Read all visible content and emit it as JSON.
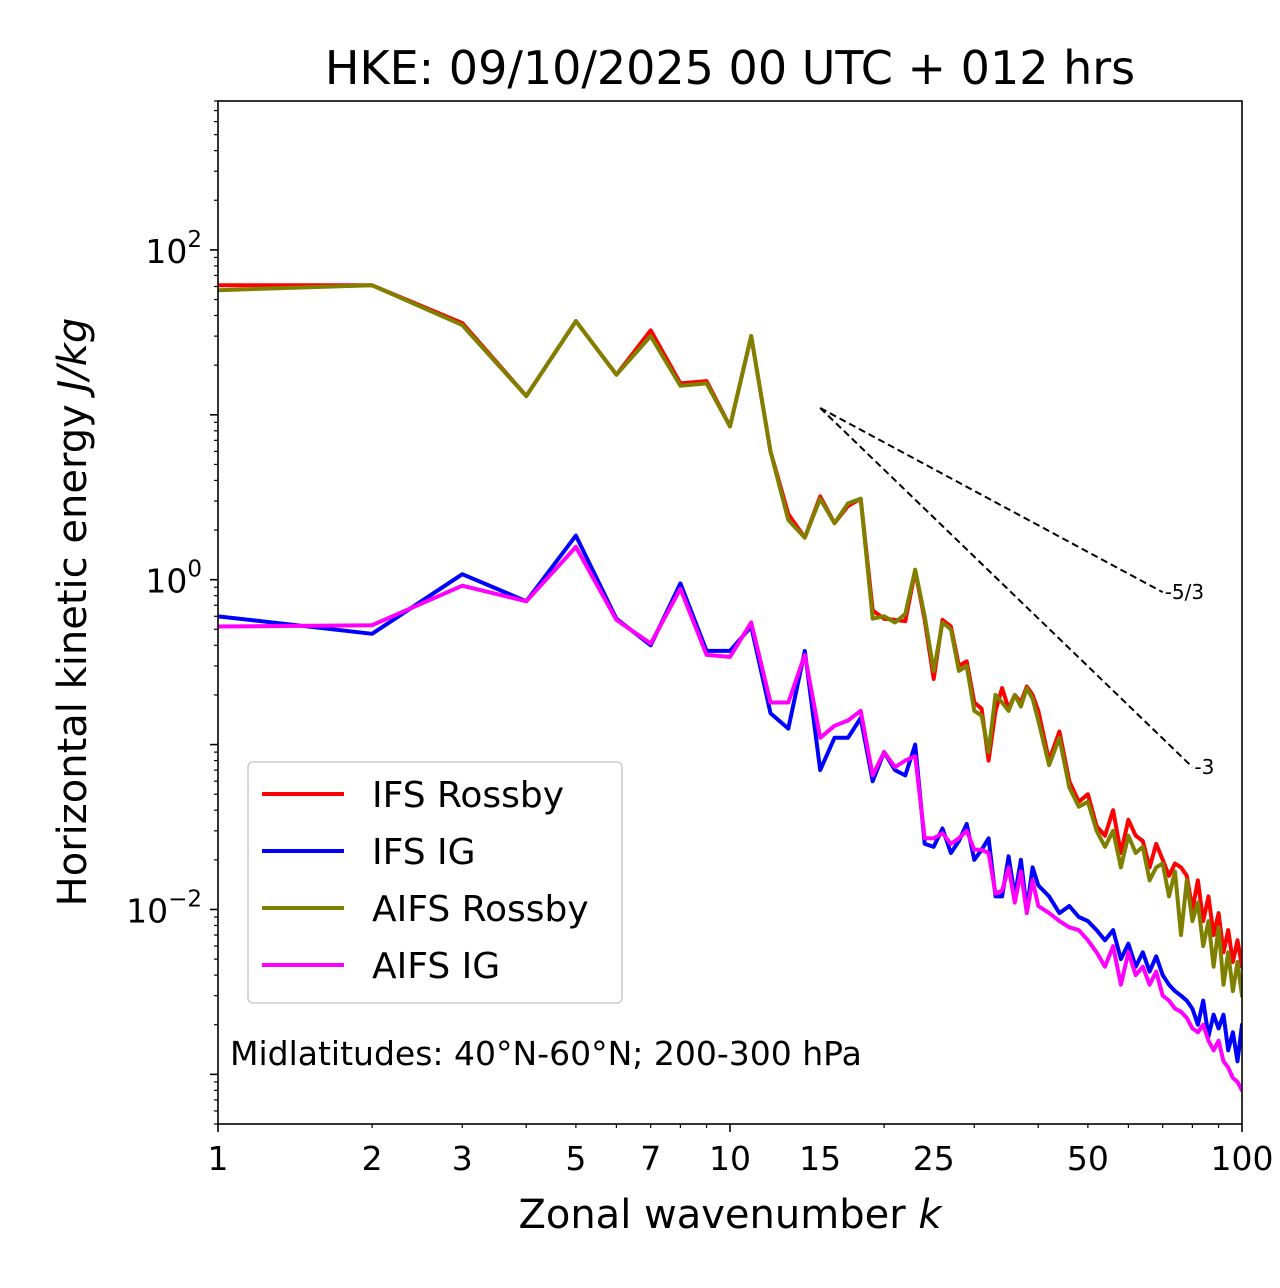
{
  "chart_data": {
    "type": "line",
    "title": "HKE: 09/10/2025 00 UTC + 012 hrs",
    "xlabel": "Zonal wavenumber",
    "xlabel_var": "k",
    "ylabel": "Horizontal kinetic energy",
    "ylabel_unit": "J/kg",
    "xscale": "log",
    "yscale": "log",
    "xlim": [
      1,
      100
    ],
    "ylim": [
      0.0005,
      800
    ],
    "x_ticks": [
      1,
      2,
      3,
      5,
      7,
      10,
      15,
      25,
      50,
      100
    ],
    "x_tick_labels": [
      "1",
      "2",
      "3",
      "5",
      "7",
      "10",
      "15",
      "25",
      "50",
      "100"
    ],
    "y_ticks": [
      {
        "value": 100,
        "base": "10",
        "exp": "2"
      },
      {
        "value": 1,
        "base": "10",
        "exp": "0"
      },
      {
        "value": 0.01,
        "base": "10",
        "exp": "−2"
      }
    ],
    "annotation": "Midlatitudes: 40°N-60°N; 200-300 hPa",
    "legend_position": "lower-left",
    "reference_slopes": [
      {
        "label": "-5/3",
        "x": [
          15,
          70
        ],
        "y": [
          11,
          0.84
        ]
      },
      {
        "label": "-3",
        "x": [
          15,
          80
        ],
        "y": [
          11,
          0.073
        ]
      }
    ],
    "series": [
      {
        "name": "IFS Rossby",
        "color": "#ff0000",
        "x": [
          1,
          2,
          3,
          4,
          5,
          6,
          7,
          8,
          9,
          10,
          11,
          12,
          13,
          14,
          15,
          16,
          17,
          18,
          19,
          20,
          21,
          22,
          23,
          24,
          25,
          26,
          27,
          28,
          29,
          30,
          31,
          32,
          33,
          34,
          35,
          36,
          37,
          38,
          39,
          40,
          42,
          44,
          46,
          48,
          50,
          52,
          54,
          56,
          58,
          60,
          62,
          64,
          66,
          68,
          70,
          72,
          74,
          76,
          78,
          80,
          82,
          84,
          86,
          88,
          90,
          92,
          94,
          96,
          98,
          100
        ],
        "y": [
          61,
          61,
          36,
          13,
          37,
          17.5,
          32.5,
          15.5,
          16,
          8.5,
          30,
          6,
          2.5,
          1.8,
          3.2,
          2.2,
          2.8,
          3.1,
          0.65,
          0.58,
          0.57,
          0.56,
          1.13,
          0.57,
          0.25,
          0.57,
          0.52,
          0.3,
          0.32,
          0.18,
          0.165,
          0.08,
          0.16,
          0.22,
          0.165,
          0.2,
          0.18,
          0.225,
          0.2,
          0.16,
          0.08,
          0.12,
          0.06,
          0.045,
          0.05,
          0.032,
          0.028,
          0.04,
          0.022,
          0.035,
          0.028,
          0.026,
          0.018,
          0.025,
          0.02,
          0.016,
          0.019,
          0.018,
          0.016,
          0.01,
          0.015,
          0.0085,
          0.012,
          0.007,
          0.0095,
          0.0055,
          0.0075,
          0.0048,
          0.0065,
          0.0045
        ]
      },
      {
        "name": "IFS IG",
        "color": "#0000ff",
        "x": [
          1,
          2,
          3,
          4,
          5,
          6,
          7,
          8,
          9,
          10,
          11,
          12,
          13,
          14,
          15,
          16,
          17,
          18,
          19,
          20,
          21,
          22,
          23,
          24,
          25,
          26,
          27,
          28,
          29,
          30,
          31,
          32,
          33,
          34,
          35,
          36,
          37,
          38,
          39,
          40,
          42,
          44,
          46,
          48,
          50,
          52,
          54,
          56,
          58,
          60,
          62,
          64,
          66,
          68,
          70,
          72,
          74,
          76,
          78,
          80,
          82,
          84,
          86,
          88,
          90,
          92,
          94,
          96,
          98,
          100
        ],
        "y": [
          0.6,
          0.47,
          1.08,
          0.74,
          1.85,
          0.58,
          0.4,
          0.95,
          0.37,
          0.37,
          0.52,
          0.155,
          0.125,
          0.37,
          0.07,
          0.11,
          0.11,
          0.145,
          0.06,
          0.09,
          0.07,
          0.065,
          0.1,
          0.025,
          0.024,
          0.031,
          0.022,
          0.026,
          0.033,
          0.02,
          0.023,
          0.027,
          0.012,
          0.012,
          0.021,
          0.012,
          0.02,
          0.01,
          0.018,
          0.014,
          0.012,
          0.0095,
          0.0105,
          0.009,
          0.0085,
          0.0075,
          0.0065,
          0.0075,
          0.005,
          0.0062,
          0.0045,
          0.0055,
          0.0042,
          0.0052,
          0.004,
          0.0035,
          0.0032,
          0.003,
          0.0028,
          0.0025,
          0.002,
          0.0028,
          0.0017,
          0.0023,
          0.0019,
          0.0023,
          0.0014,
          0.0018,
          0.0012,
          0.002
        ]
      },
      {
        "name": "AIFS Rossby",
        "color": "#808000",
        "x": [
          1,
          2,
          3,
          4,
          5,
          6,
          7,
          8,
          9,
          10,
          11,
          12,
          13,
          14,
          15,
          16,
          17,
          18,
          19,
          20,
          21,
          22,
          23,
          24,
          25,
          26,
          27,
          28,
          29,
          30,
          31,
          32,
          33,
          34,
          35,
          36,
          37,
          38,
          39,
          40,
          42,
          44,
          46,
          48,
          50,
          52,
          54,
          56,
          58,
          60,
          62,
          64,
          66,
          68,
          70,
          72,
          74,
          76,
          78,
          80,
          82,
          84,
          86,
          88,
          90,
          92,
          94,
          96,
          98,
          100
        ],
        "y": [
          57,
          61,
          35,
          13,
          37,
          17.5,
          30,
          15,
          15.5,
          8.5,
          30,
          6,
          2.3,
          1.8,
          3.1,
          2.2,
          2.9,
          3.1,
          0.58,
          0.6,
          0.55,
          0.62,
          1.15,
          0.6,
          0.28,
          0.55,
          0.5,
          0.28,
          0.3,
          0.16,
          0.15,
          0.09,
          0.2,
          0.18,
          0.16,
          0.2,
          0.17,
          0.22,
          0.19,
          0.14,
          0.075,
          0.11,
          0.055,
          0.042,
          0.045,
          0.03,
          0.024,
          0.03,
          0.018,
          0.028,
          0.022,
          0.024,
          0.015,
          0.018,
          0.019,
          0.012,
          0.017,
          0.007,
          0.015,
          0.0085,
          0.011,
          0.006,
          0.0085,
          0.0045,
          0.0078,
          0.0035,
          0.0055,
          0.0032,
          0.0048,
          0.003
        ]
      },
      {
        "name": "AIFS IG",
        "color": "#ff00ff",
        "x": [
          1,
          2,
          3,
          4,
          5,
          6,
          7,
          8,
          9,
          10,
          11,
          12,
          13,
          14,
          15,
          16,
          17,
          18,
          19,
          20,
          21,
          22,
          23,
          24,
          25,
          26,
          27,
          28,
          29,
          30,
          31,
          32,
          33,
          34,
          35,
          36,
          37,
          38,
          39,
          40,
          42,
          44,
          46,
          48,
          50,
          52,
          54,
          56,
          58,
          60,
          62,
          64,
          66,
          68,
          70,
          72,
          74,
          76,
          78,
          80,
          82,
          84,
          86,
          88,
          90,
          92,
          94,
          96,
          98,
          100
        ],
        "y": [
          0.52,
          0.53,
          0.92,
          0.74,
          1.58,
          0.57,
          0.41,
          0.88,
          0.35,
          0.34,
          0.55,
          0.18,
          0.18,
          0.35,
          0.11,
          0.13,
          0.14,
          0.16,
          0.065,
          0.09,
          0.073,
          0.08,
          0.085,
          0.027,
          0.027,
          0.029,
          0.025,
          0.027,
          0.03,
          0.023,
          0.023,
          0.022,
          0.0125,
          0.013,
          0.018,
          0.011,
          0.017,
          0.0095,
          0.015,
          0.0105,
          0.0095,
          0.0085,
          0.0078,
          0.0075,
          0.0065,
          0.0055,
          0.0045,
          0.006,
          0.0035,
          0.0055,
          0.004,
          0.0045,
          0.0035,
          0.0042,
          0.003,
          0.0028,
          0.0025,
          0.0024,
          0.0022,
          0.0019,
          0.0018,
          0.002,
          0.0016,
          0.0014,
          0.0016,
          0.0012,
          0.0011,
          0.00095,
          0.0009,
          0.0008
        ]
      }
    ]
  }
}
